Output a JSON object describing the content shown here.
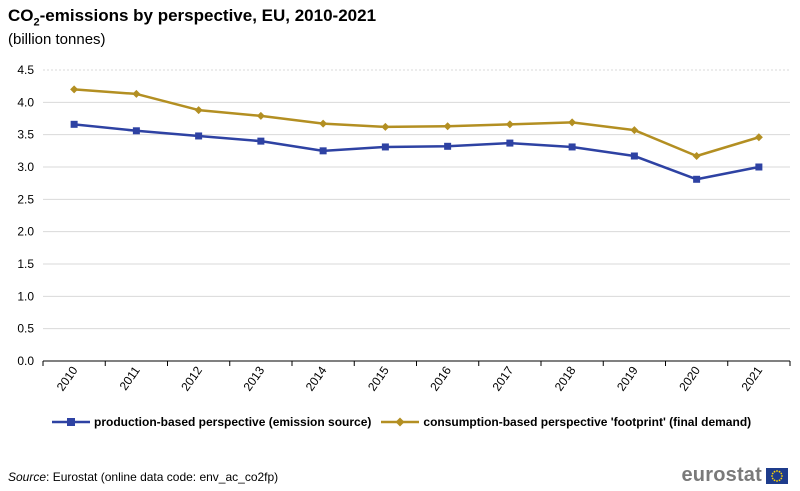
{
  "title_main": "CO",
  "title_sub": "2",
  "title_rest": "-emissions by perspective, EU, 2010-2021",
  "subtitle": "(billion tonnes)",
  "source_label": "Source",
  "source_text": ": Eurostat (online data code: env_ac_co2fp)",
  "logo_text": "eurostat",
  "chart_data": {
    "type": "line",
    "title": "CO2-emissions by perspective, EU, 2010-2021",
    "ylabel": "billion tonnes",
    "categories": [
      "2010",
      "2011",
      "2012",
      "2013",
      "2014",
      "2015",
      "2016",
      "2017",
      "2018",
      "2019",
      "2020",
      "2021"
    ],
    "yticks": [
      "0.0",
      "0.5",
      "1.0",
      "1.5",
      "2.0",
      "2.5",
      "3.0",
      "3.5",
      "4.0",
      "4.5"
    ],
    "ylim": [
      0,
      4.5
    ],
    "series": [
      {
        "name": "production-based perspective (emission source)",
        "color": "#2e42a3",
        "marker": "square",
        "values": [
          3.66,
          3.56,
          3.48,
          3.4,
          3.25,
          3.31,
          3.32,
          3.37,
          3.31,
          3.17,
          2.81,
          3.0
        ]
      },
      {
        "name": "consumption-based perspective 'footprint' (final demand)",
        "color": "#b38f22",
        "marker": "diamond",
        "values": [
          4.2,
          4.13,
          3.88,
          3.79,
          3.67,
          3.62,
          3.63,
          3.66,
          3.69,
          3.57,
          3.17,
          3.46
        ]
      }
    ]
  }
}
